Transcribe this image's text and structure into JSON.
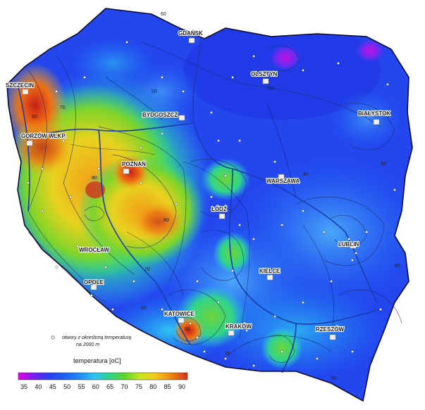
{
  "map": {
    "cities": [
      {
        "name": "GDAŃSK",
        "dx": 0
      },
      {
        "name": "OLSZTYN",
        "dx": 0
      },
      {
        "name": "SZCZECIN",
        "dx": 0
      },
      {
        "name": "BYDGOSZCZ",
        "dx": 0
      },
      {
        "name": "BIAŁYSTOK",
        "dx": 0
      },
      {
        "name": "GORZÓW WLKP.",
        "dx": 0
      },
      {
        "name": "POZNAŃ",
        "dx": 0
      },
      {
        "name": "WARSZAWA",
        "dx": 0
      },
      {
        "name": "ŁÓDŹ",
        "dx": 0
      },
      {
        "name": "LUBLIN",
        "dx": 0
      },
      {
        "name": "WROCŁAW",
        "dx": 0
      },
      {
        "name": "KIELCE",
        "dx": 0
      },
      {
        "name": "OPOLE",
        "dx": 0
      },
      {
        "name": "KATOWICE",
        "dx": 0
      },
      {
        "name": "KRAKÓW",
        "dx": 0
      },
      {
        "name": "RZESZÓW",
        "dx": 0
      }
    ],
    "isolines": [
      "60",
      "50",
      "50",
      "40",
      "50",
      "80",
      "80",
      "70",
      "70",
      "60",
      "60",
      "50",
      "50",
      "90",
      "80"
    ],
    "note_line1": "otwory z określoną temperaturą",
    "note_line2": "na 2000 m"
  },
  "legend": {
    "title": "temperatura  [oC]",
    "ticks": [
      "35",
      "40",
      "45",
      "50",
      "55",
      "60",
      "65",
      "70",
      "75",
      "80",
      "85",
      "90"
    ],
    "colors": [
      "#e400e0",
      "#7a1cf0",
      "#2a3cf0",
      "#1d5ef4",
      "#1e8cf6",
      "#2ec4f2",
      "#2fd48a",
      "#5fd42a",
      "#c8e61a",
      "#f2c81a",
      "#f08a12",
      "#d2321e"
    ]
  }
}
